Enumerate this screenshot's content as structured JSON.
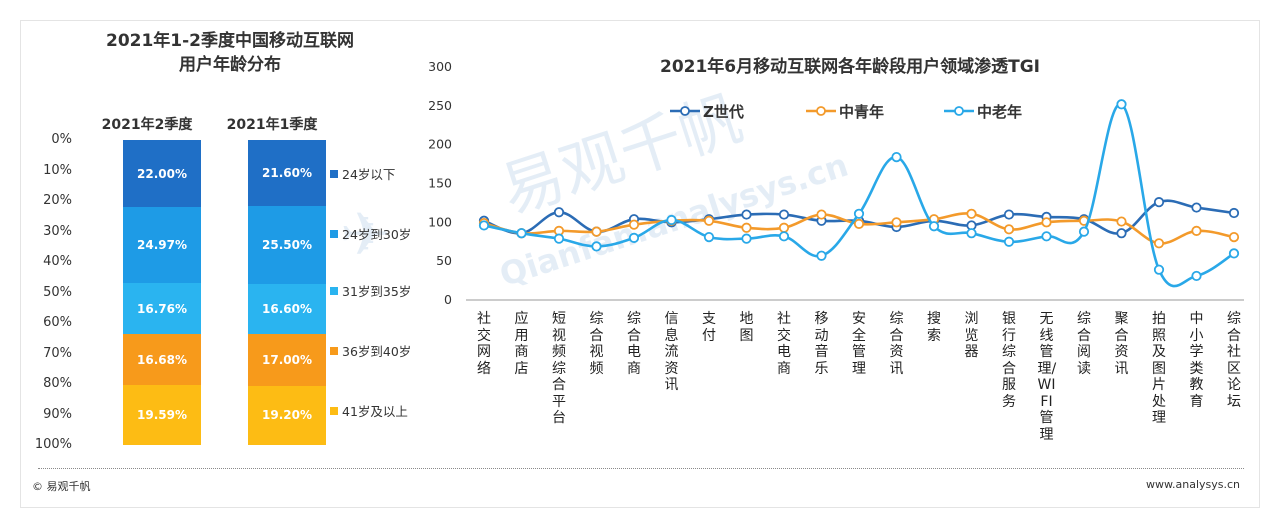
{
  "footer": {
    "left": "© 易观千帆",
    "right": "www.analysys.cn"
  },
  "watermark": {
    "cn": "易观千帆",
    "en": "Qianfan.analysys.cn"
  },
  "chart_data": [
    {
      "type": "bar",
      "stacked": true,
      "title_line1": "2021年1-2季度中国移动互联网",
      "title_line2": "用户年龄分布",
      "categories": [
        "2021年2季度",
        "2021年1季度"
      ],
      "ytick_labels": [
        "0%",
        "10%",
        "20%",
        "30%",
        "40%",
        "50%",
        "60%",
        "70%",
        "80%",
        "90%",
        "100%"
      ],
      "ylim": [
        0,
        100
      ],
      "series": [
        {
          "name": "24岁以下",
          "color": "#1f6fc6",
          "values": [
            22.0,
            21.6
          ],
          "labels": [
            "22.00%",
            "21.60%"
          ]
        },
        {
          "name": "24岁到30岁",
          "color": "#1e9be6",
          "values": [
            24.97,
            25.5
          ],
          "labels": [
            "24.97%",
            "25.50%"
          ]
        },
        {
          "name": "31岁到35岁",
          "color": "#2ab4f0",
          "values": [
            16.76,
            16.6
          ],
          "labels": [
            "16.76%",
            "16.60%"
          ]
        },
        {
          "name": "36岁到40岁",
          "color": "#f79a1b",
          "values": [
            16.68,
            17.0
          ],
          "labels": [
            "16.68%",
            "17.00%"
          ]
        },
        {
          "name": "41岁及以上",
          "color": "#fdbc14",
          "values": [
            19.59,
            19.2
          ],
          "labels": [
            "19.59%",
            "19.20%"
          ]
        }
      ]
    },
    {
      "type": "line",
      "title": "2021年6月移动互联网各年龄段用户领域渗透TGI",
      "ylim": [
        0,
        300
      ],
      "yticks": [
        0,
        50,
        100,
        150,
        200,
        250,
        300
      ],
      "legend_position": "top",
      "categories": [
        "社交网络",
        "应用商店",
        "短视频综合平台",
        "综合视频",
        "综合电商",
        "信息流资讯",
        "支付",
        "地图",
        "社交电商",
        "移动音乐",
        "安全管理",
        "综合资讯",
        "搜索",
        "浏览器",
        "银行综合服务",
        "无线管理/WIFI管理",
        "综合阅读",
        "聚合资讯",
        "拍照及图片处理",
        "中小学类教育",
        "综合社区论坛"
      ],
      "series": [
        {
          "name": "Z世代",
          "color": "#2b6cb5",
          "values": [
            102,
            86,
            113,
            88,
            104,
            100,
            104,
            110,
            110,
            102,
            102,
            94,
            102,
            96,
            110,
            107,
            104,
            86,
            126,
            119,
            112
          ]
        },
        {
          "name": "中青年",
          "color": "#f39a2b",
          "values": [
            99,
            86,
            89,
            88,
            97,
            102,
            102,
            93,
            93,
            110,
            98,
            100,
            104,
            111,
            91,
            100,
            102,
            101,
            73,
            89,
            81
          ]
        },
        {
          "name": "中老年",
          "color": "#29a8e8",
          "values": [
            96,
            86,
            79,
            69,
            80,
            103,
            81,
            79,
            82,
            57,
            111,
            184,
            95,
            86,
            75,
            82,
            88,
            252,
            39,
            31,
            60
          ]
        }
      ]
    }
  ]
}
